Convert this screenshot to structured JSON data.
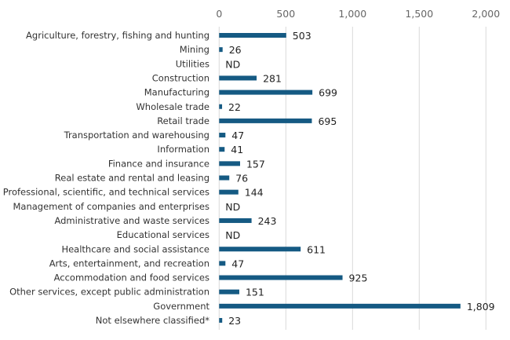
{
  "chart_data": {
    "type": "bar",
    "orientation": "horizontal",
    "categories": [
      "Agriculture, forestry, fishing and hunting",
      "Mining",
      "Utilities",
      "Construction",
      "Manufacturing",
      "Wholesale trade",
      "Retail trade",
      "Transportation and warehousing",
      "Information",
      "Finance and insurance",
      "Real estate and rental and leasing",
      "Professional, scientific, and technical services",
      "Management of companies and enterprises",
      "Administrative and waste services",
      "Educational services",
      "Healthcare and social assistance",
      "Arts, entertainment, and recreation",
      "Accommodation and food services",
      "Other services, except public administration",
      "Government",
      "Not elsewhere classified*"
    ],
    "values": [
      503,
      26,
      null,
      281,
      699,
      22,
      695,
      47,
      41,
      157,
      76,
      144,
      null,
      243,
      null,
      611,
      47,
      925,
      151,
      1809,
      23
    ],
    "data_labels": [
      "503",
      "26",
      "ND",
      "281",
      "699",
      "22",
      "695",
      "47",
      "41",
      "157",
      "76",
      "144",
      "ND",
      "243",
      "ND",
      "611",
      "47",
      "925",
      "151",
      "1,809",
      "23"
    ],
    "xlim": [
      0,
      2000
    ],
    "x_ticks": [
      0,
      500,
      1000,
      1500,
      2000
    ],
    "x_tick_labels": [
      "0",
      "500",
      "1,000",
      "1,500",
      "2,000"
    ],
    "x_axis_position": "top",
    "grid": true,
    "bar_color": "#155a83",
    "grid_color": "#d9d9d9"
  }
}
